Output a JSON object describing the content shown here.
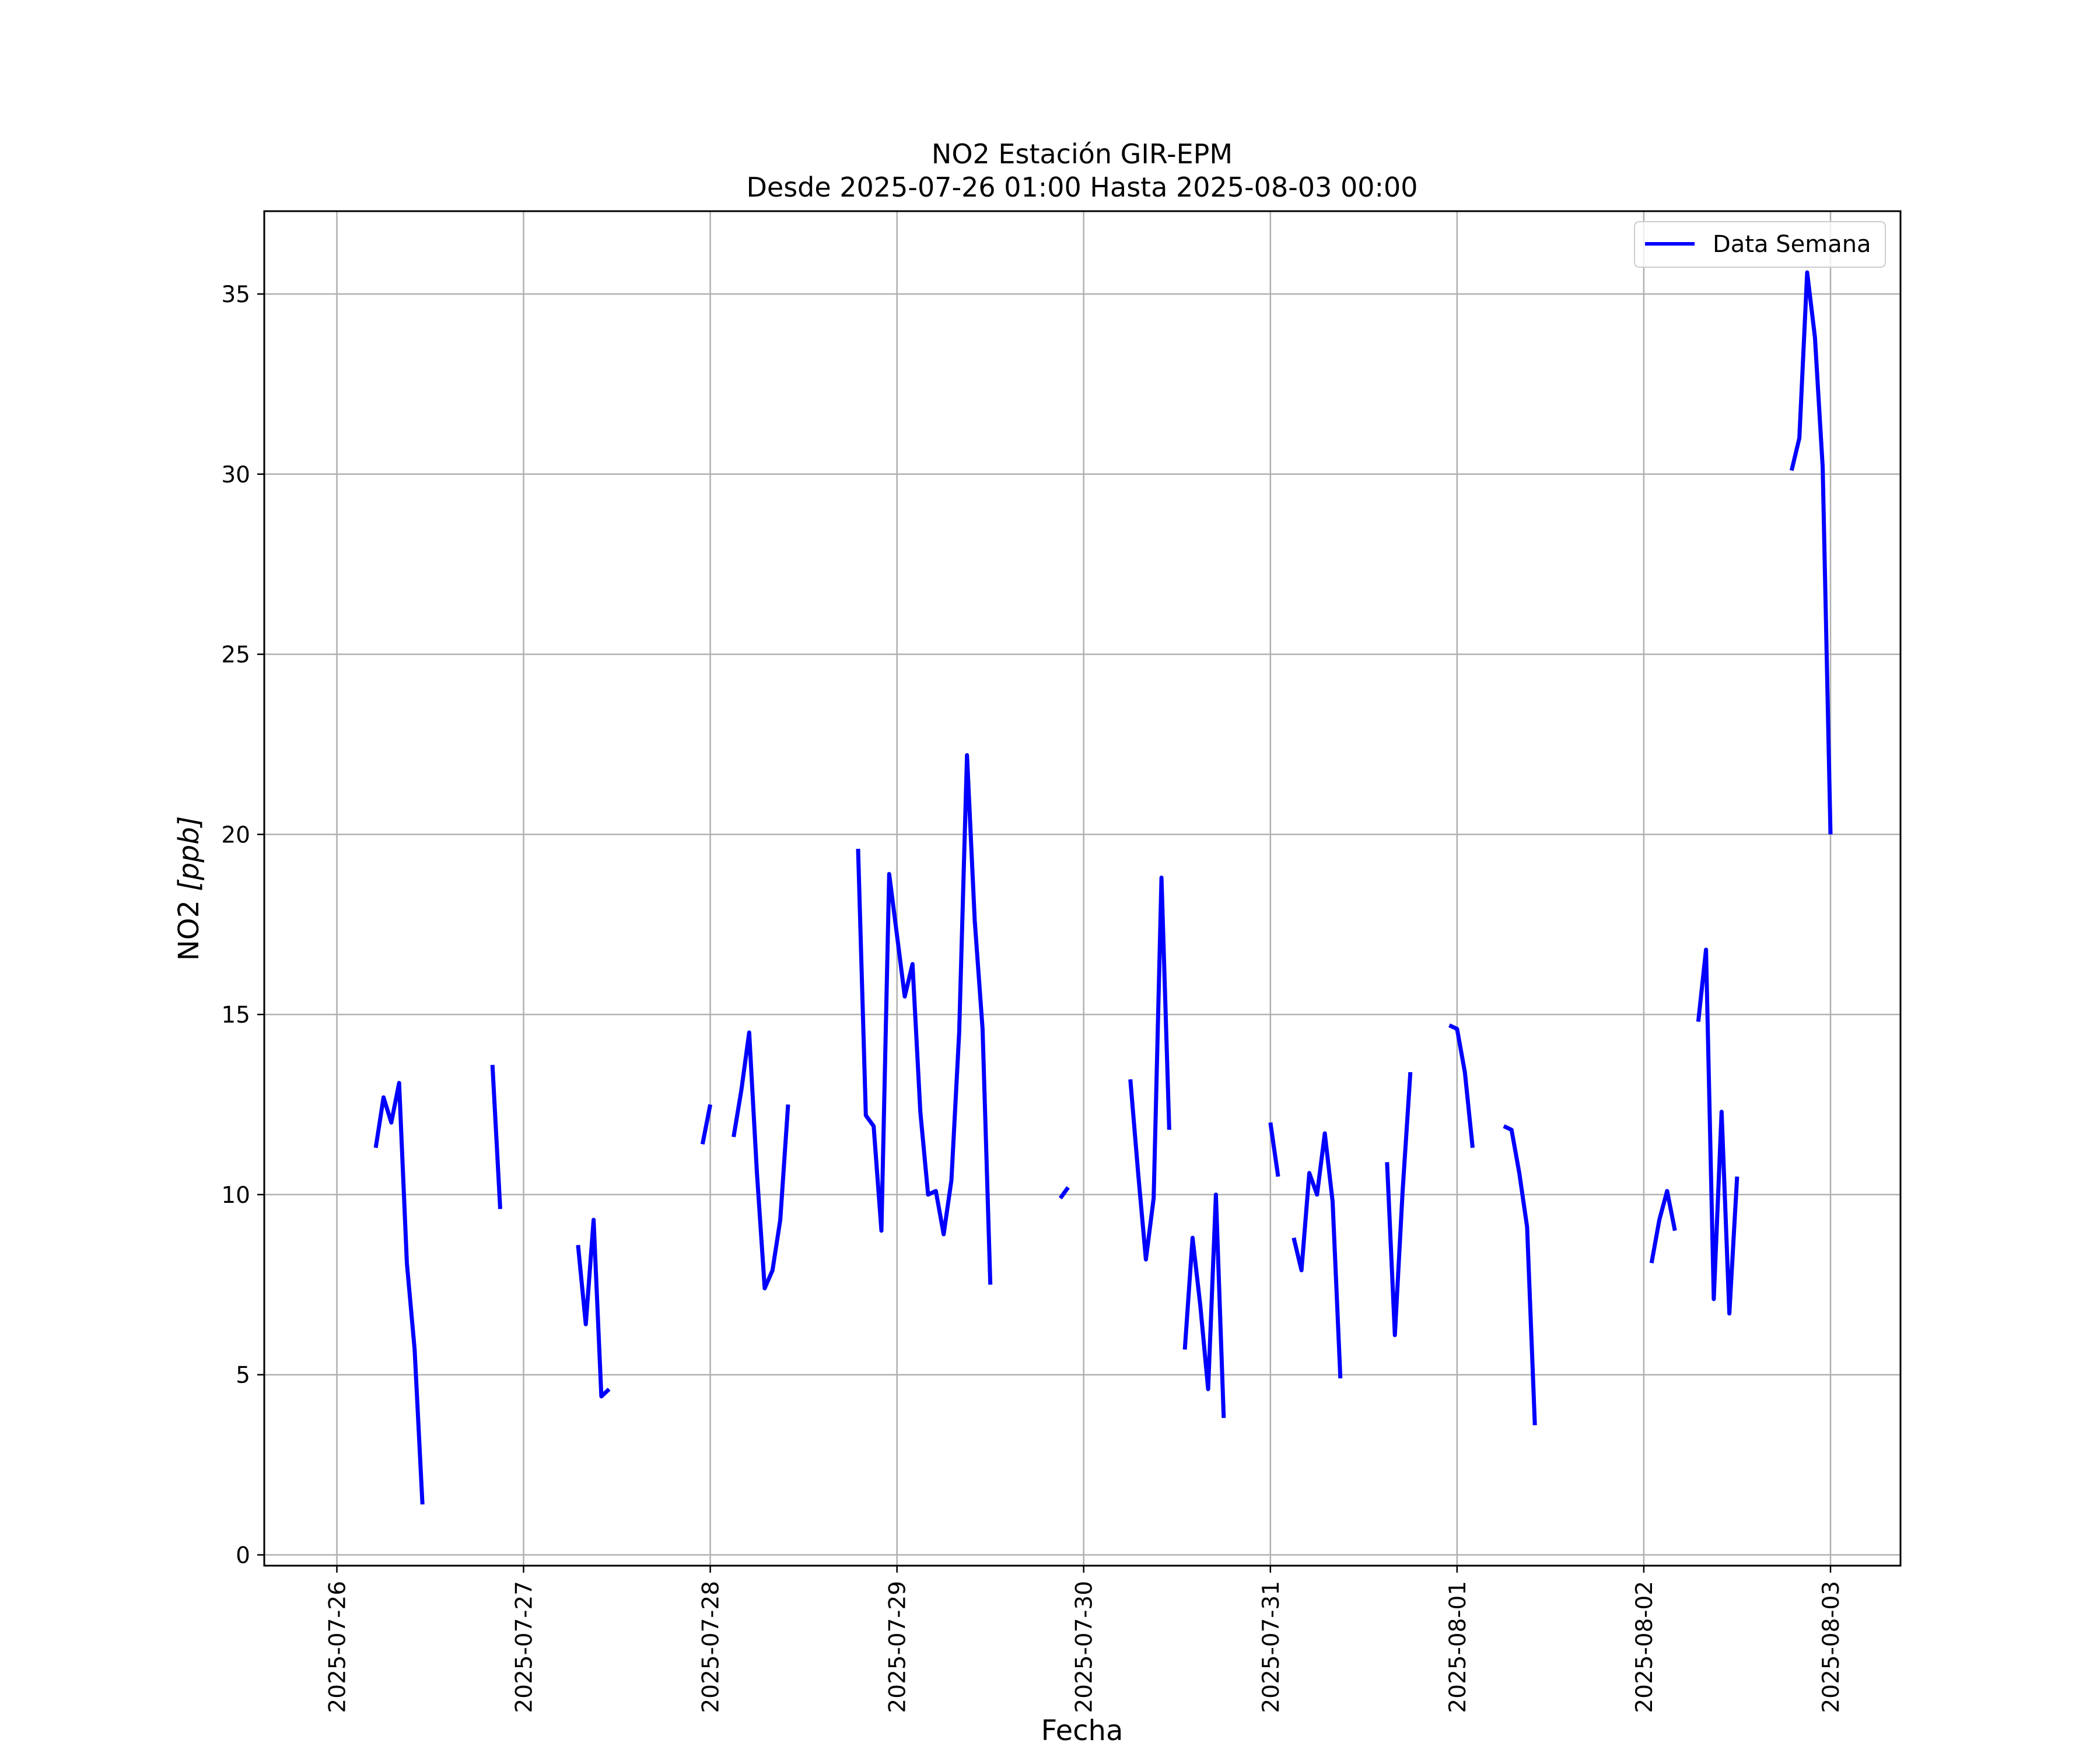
{
  "chart_data": {
    "type": "line",
    "title": "NO2 Estación GIR-EPM",
    "subtitle": "Desde 2025-07-26 01:00 Hasta 2025-08-03 00:00",
    "xlabel": "Fecha",
    "ylabel": "NO2 [ppb]",
    "ylabel_text": "NO2 ",
    "ylabel_unit": "[ppb]",
    "x_ticks": [
      "2025-07-26",
      "2025-07-27",
      "2025-07-28",
      "2025-07-29",
      "2025-07-30",
      "2025-07-31",
      "2025-08-01",
      "2025-08-02",
      "2025-08-03"
    ],
    "y_ticks": [
      "0",
      "5",
      "10",
      "15",
      "20",
      "25",
      "30",
      "35"
    ],
    "xlim": [
      "2025-07-25 14:40",
      "2025-08-03 09:00"
    ],
    "ylim": [
      -0.3,
      37.3
    ],
    "grid": true,
    "legend_position": "top-right",
    "color": "#0000ff",
    "series": [
      {
        "name": "Data Semana",
        "segments": [
          [
            [
              "2025-07-26 05:00",
              11.3
            ],
            [
              "2025-07-26 06:00",
              12.7
            ],
            [
              "2025-07-26 07:00",
              12.0
            ],
            [
              "2025-07-26 08:00",
              13.1
            ],
            [
              "2025-07-26 09:00",
              8.1
            ],
            [
              "2025-07-26 10:00",
              5.7
            ],
            [
              "2025-07-26 11:00",
              1.4
            ]
          ],
          [
            [
              "2025-07-26 20:00",
              13.6
            ],
            [
              "2025-07-26 21:00",
              9.6
            ]
          ],
          [
            [
              "2025-07-27 07:00",
              8.6
            ],
            [
              "2025-07-27 08:00",
              6.4
            ],
            [
              "2025-07-27 09:00",
              9.3
            ],
            [
              "2025-07-27 10:00",
              4.4
            ],
            [
              "2025-07-27 11:00",
              4.6
            ]
          ],
          [
            [
              "2025-07-27 23:00",
              11.4
            ],
            [
              "2025-07-28 00:00",
              12.5
            ]
          ],
          [
            [
              "2025-07-28 03:00",
              11.6
            ],
            [
              "2025-07-28 04:00",
              12.9
            ],
            [
              "2025-07-28 05:00",
              14.5
            ],
            [
              "2025-07-28 06:00",
              10.6
            ],
            [
              "2025-07-28 07:00",
              7.4
            ],
            [
              "2025-07-28 08:00",
              7.9
            ],
            [
              "2025-07-28 09:00",
              9.3
            ],
            [
              "2025-07-28 10:00",
              12.5
            ]
          ],
          [
            [
              "2025-07-28 19:00",
              19.6
            ],
            [
              "2025-07-28 20:00",
              12.2
            ],
            [
              "2025-07-28 21:00",
              11.9
            ],
            [
              "2025-07-28 22:00",
              9.0
            ],
            [
              "2025-07-28 23:00",
              18.9
            ],
            [
              "2025-07-29 00:00",
              17.2
            ],
            [
              "2025-07-29 01:00",
              15.5
            ],
            [
              "2025-07-29 02:00",
              16.4
            ],
            [
              "2025-07-29 03:00",
              12.3
            ],
            [
              "2025-07-29 04:00",
              10.0
            ],
            [
              "2025-07-29 05:00",
              10.1
            ],
            [
              "2025-07-29 06:00",
              8.9
            ],
            [
              "2025-07-29 07:00",
              10.4
            ],
            [
              "2025-07-29 08:00",
              14.5
            ],
            [
              "2025-07-29 09:00",
              22.2
            ],
            [
              "2025-07-29 10:00",
              17.6
            ],
            [
              "2025-07-29 11:00",
              14.6
            ],
            [
              "2025-07-29 12:00",
              7.5
            ]
          ],
          [
            [
              "2025-07-29 21:00",
              9.9
            ],
            [
              "2025-07-29 22:00",
              10.2
            ]
          ],
          [
            [
              "2025-07-30 06:00",
              13.2
            ],
            [
              "2025-07-30 07:00",
              10.6
            ],
            [
              "2025-07-30 08:00",
              8.2
            ],
            [
              "2025-07-30 09:00",
              9.9
            ],
            [
              "2025-07-30 10:00",
              18.8
            ],
            [
              "2025-07-30 11:00",
              11.8
            ]
          ],
          [
            [
              "2025-07-30 13:00",
              5.7
            ],
            [
              "2025-07-30 14:00",
              8.8
            ],
            [
              "2025-07-30 15:00",
              6.9
            ],
            [
              "2025-07-30 16:00",
              4.6
            ],
            [
              "2025-07-30 17:00",
              10.0
            ],
            [
              "2025-07-30 18:00",
              3.8
            ]
          ],
          [
            [
              "2025-07-31 00:00",
              12.0
            ],
            [
              "2025-07-31 01:00",
              10.5
            ]
          ],
          [
            [
              "2025-07-31 03:00",
              8.8
            ],
            [
              "2025-07-31 04:00",
              7.9
            ],
            [
              "2025-07-31 05:00",
              10.6
            ],
            [
              "2025-07-31 06:00",
              10.0
            ],
            [
              "2025-07-31 07:00",
              11.7
            ],
            [
              "2025-07-31 08:00",
              9.8
            ],
            [
              "2025-07-31 09:00",
              4.9
            ]
          ],
          [
            [
              "2025-07-31 15:00",
              10.9
            ],
            [
              "2025-07-31 16:00",
              6.1
            ],
            [
              "2025-07-31 17:00",
              10.1
            ],
            [
              "2025-07-31 18:00",
              13.4
            ]
          ],
          [
            [
              "2025-07-31 23:00",
              14.7
            ],
            [
              "2025-08-01 00:00",
              14.6
            ],
            [
              "2025-08-01 01:00",
              13.4
            ],
            [
              "2025-08-01 02:00",
              11.3
            ]
          ],
          [
            [
              "2025-08-01 06:00",
              11.9
            ],
            [
              "2025-08-01 07:00",
              11.8
            ],
            [
              "2025-08-01 08:00",
              10.6
            ],
            [
              "2025-08-01 09:00",
              9.1
            ],
            [
              "2025-08-01 10:00",
              3.6
            ]
          ],
          [
            [
              "2025-08-02 01:00",
              8.1
            ],
            [
              "2025-08-02 02:00",
              9.3
            ],
            [
              "2025-08-02 03:00",
              10.1
            ],
            [
              "2025-08-02 04:00",
              9.0
            ]
          ],
          [
            [
              "2025-08-02 07:00",
              14.8
            ],
            [
              "2025-08-02 08:00",
              16.8
            ],
            [
              "2025-08-02 09:00",
              7.1
            ],
            [
              "2025-08-02 10:00",
              12.3
            ],
            [
              "2025-08-02 11:00",
              6.7
            ],
            [
              "2025-08-02 12:00",
              10.5
            ]
          ],
          [
            [
              "2025-08-02 19:00",
              30.1
            ],
            [
              "2025-08-02 20:00",
              31.0
            ],
            [
              "2025-08-02 21:00",
              35.6
            ],
            [
              "2025-08-02 22:00",
              33.8
            ],
            [
              "2025-08-02 23:00",
              30.2
            ],
            [
              "2025-08-03 00:00",
              20.0
            ]
          ]
        ]
      }
    ]
  }
}
